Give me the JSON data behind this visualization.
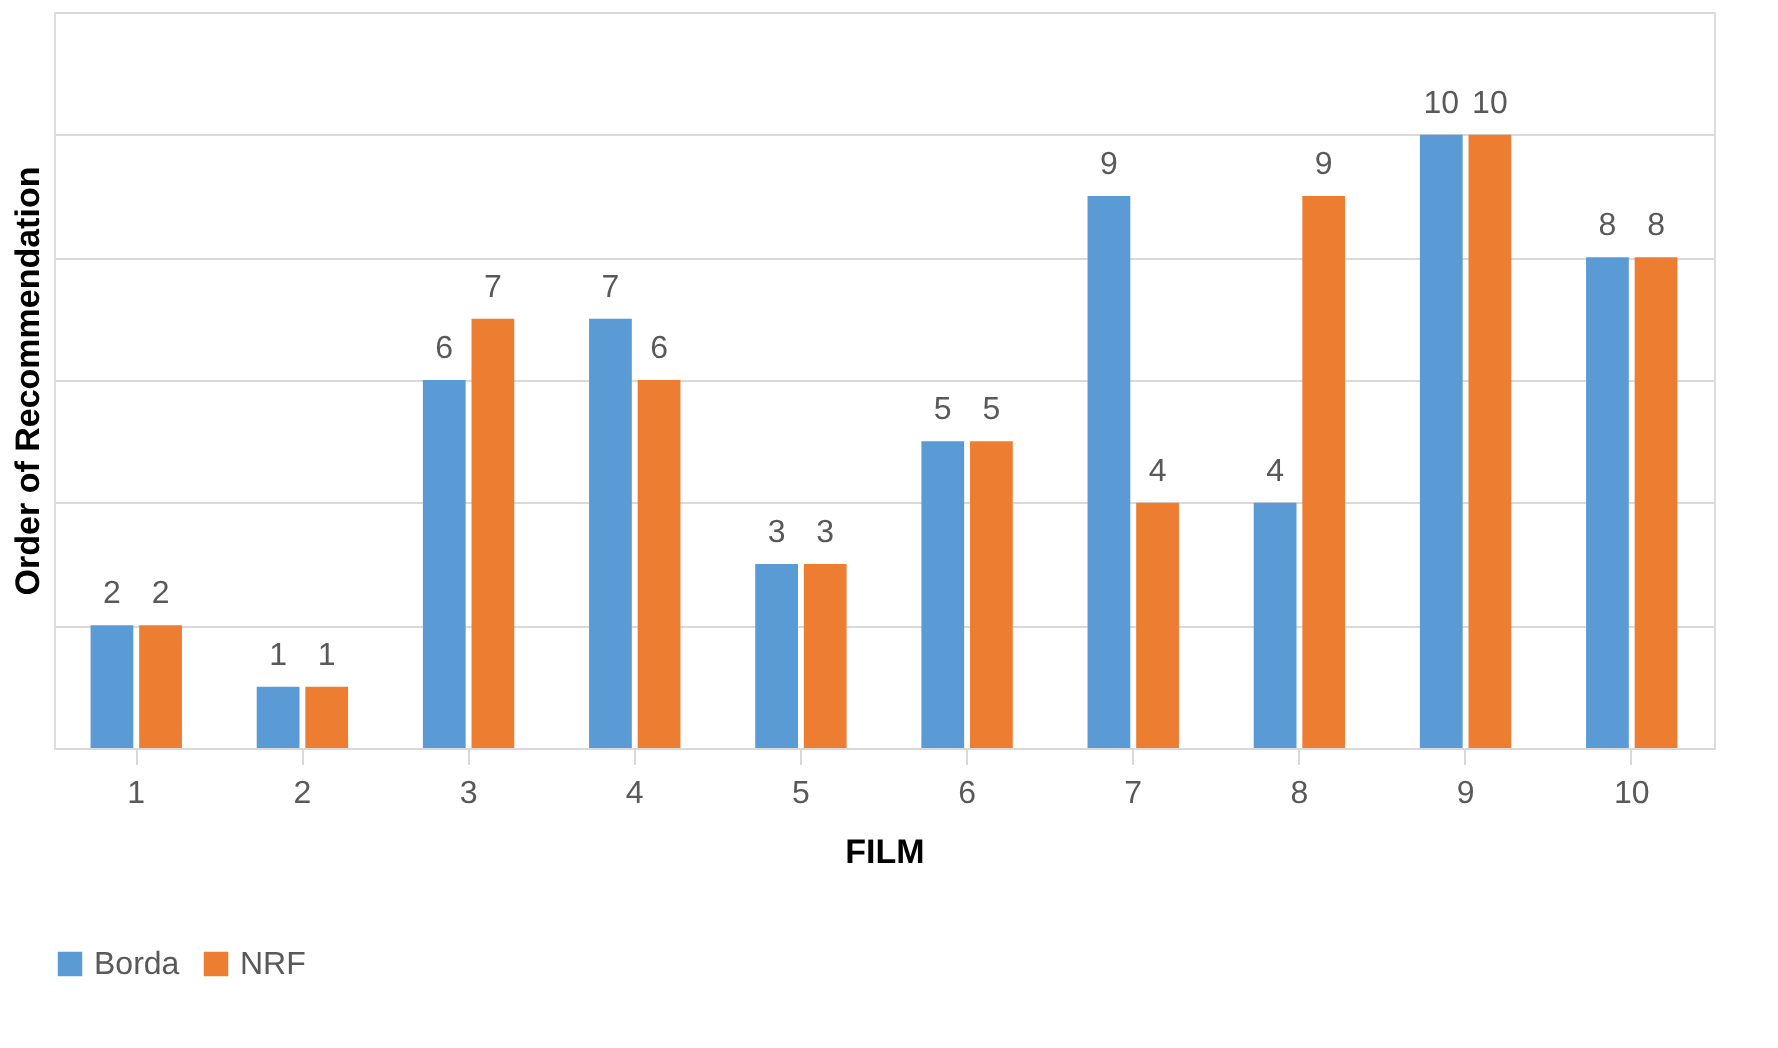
{
  "chart_data": {
    "type": "bar",
    "xlabel": "FILM",
    "ylabel": "Order of Recommendation",
    "categories": [
      "1",
      "2",
      "3",
      "4",
      "5",
      "6",
      "7",
      "8",
      "9",
      "10"
    ],
    "series": [
      {
        "name": "Borda",
        "color": "#5b9bd5",
        "values": [
          2,
          1,
          6,
          7,
          3,
          5,
          9,
          4,
          10,
          8
        ]
      },
      {
        "name": "NRF",
        "color": "#ed7d31",
        "values": [
          2,
          1,
          7,
          6,
          3,
          5,
          4,
          9,
          10,
          8
        ]
      }
    ],
    "ylim": [
      0,
      12
    ],
    "yticks": [
      {
        "value": 0,
        "label": null
      },
      {
        "value": 2,
        "label": null
      },
      {
        "value": 4,
        "label": null
      },
      {
        "value": 6,
        "label": null
      },
      {
        "value": 8,
        "label": null
      },
      {
        "value": 10,
        "label": null
      },
      {
        "value": 12,
        "label": null
      }
    ],
    "tick_labels": "x",
    "grid": "y",
    "legend": "bottom",
    "data_labels": true
  }
}
